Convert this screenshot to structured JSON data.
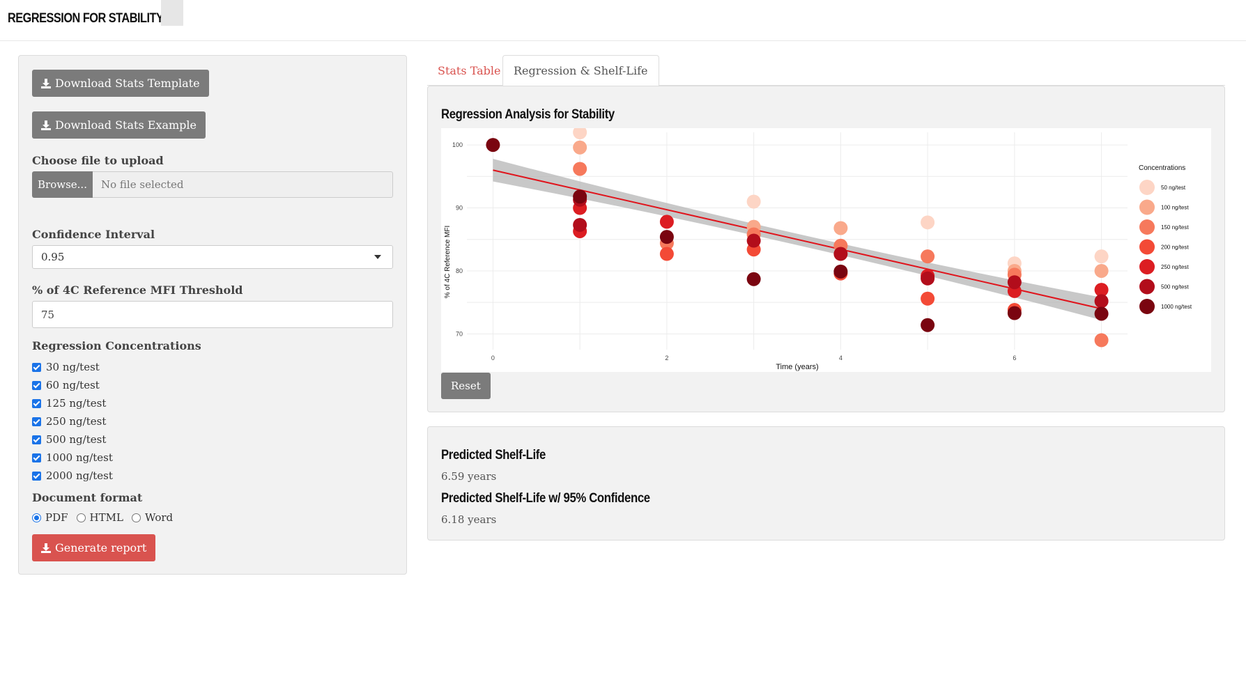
{
  "app": {
    "title": "REGRESSION FOR STABILITY"
  },
  "sidebar": {
    "download_template_label": "Download Stats Template",
    "download_example_label": "Download Stats Example",
    "file_upload": {
      "label": "Choose file to upload",
      "browse_label": "Browse...",
      "value": "No file selected"
    },
    "confidence_interval": {
      "label": "Confidence Interval",
      "value": "0.95"
    },
    "threshold": {
      "label": "% of 4C Reference MFI Threshold",
      "value": "75"
    },
    "regression_concentrations": {
      "label": "Regression Concentrations",
      "items": [
        "30 ng/test",
        "60 ng/test",
        "125 ng/test",
        "250 ng/test",
        "500 ng/test",
        "1000 ng/test",
        "2000 ng/test"
      ]
    },
    "document_format": {
      "label": "Document format",
      "options": [
        "PDF",
        "HTML",
        "Word"
      ],
      "selected": "PDF"
    },
    "generate_label": "Generate report"
  },
  "tabs": [
    {
      "label": "Stats Table",
      "active": false
    },
    {
      "label": "Regression & Shelf-Life",
      "active": true
    }
  ],
  "regression_panel": {
    "title": "Regression Analysis for Stability",
    "reset_label": "Reset"
  },
  "shelf_life": {
    "predicted_label": "Predicted Shelf-Life",
    "predicted_value": "6.59 years",
    "confidence_label": "Predicted Shelf-Life w/ 95% Confidence",
    "confidence_value": "6.18 years"
  },
  "colors": {
    "accent_red": "#d9534f",
    "button_gray": "#7b7b7b",
    "panel_bg": "#f2f2f2"
  },
  "chart_data": {
    "type": "scatter",
    "title": "",
    "xlabel": "Time (years)",
    "ylabel": "% of 4C Reference MFI",
    "xlim": [
      -0.3,
      7.3
    ],
    "ylim": [
      67.5,
      102
    ],
    "x_ticks": [
      0,
      2,
      4,
      6
    ],
    "y_ticks": [
      70,
      80,
      90,
      100
    ],
    "grid": true,
    "legend": {
      "title": "Concentrations",
      "position": "right"
    },
    "regression": {
      "x_start": 0,
      "y_start": 96.0,
      "x_end": 7,
      "y_end": 74.0,
      "ci_halfwidth_start": 1.8,
      "ci_halfwidth_mid": 0.9,
      "ci_halfwidth_end": 1.8
    },
    "series": [
      {
        "name": "50 ng/test",
        "color": "#fdd5c5",
        "points": [
          [
            1,
            102
          ],
          [
            3,
            91
          ],
          [
            5,
            87.7
          ],
          [
            6,
            81.2
          ],
          [
            7,
            82.3
          ]
        ]
      },
      {
        "name": "100 ng/test",
        "color": "#f9a98b",
        "points": [
          [
            1,
            99.6
          ],
          [
            3,
            87
          ],
          [
            4,
            86.8
          ],
          [
            6,
            80
          ],
          [
            7,
            80
          ]
        ]
      },
      {
        "name": "150 ng/test",
        "color": "#f6795c",
        "points": [
          [
            1,
            96.2
          ],
          [
            2,
            84.4
          ],
          [
            3,
            85.8
          ],
          [
            4,
            84
          ],
          [
            5,
            82.3
          ],
          [
            6,
            79.4
          ],
          [
            7,
            69
          ]
        ]
      },
      {
        "name": "200 ng/test",
        "color": "#f34a36",
        "points": [
          [
            2,
            82.7
          ],
          [
            3,
            83.4
          ],
          [
            4,
            79.6
          ],
          [
            5,
            75.6
          ],
          [
            6,
            73.8
          ]
        ]
      },
      {
        "name": "250 ng/test",
        "color": "#dc1d22",
        "points": [
          [
            1,
            86.3
          ],
          [
            1,
            90
          ],
          [
            2,
            87.8
          ],
          [
            5,
            79.2
          ],
          [
            6,
            76.8
          ],
          [
            7,
            77
          ]
        ]
      },
      {
        "name": "500 ng/test",
        "color": "#b20d1b",
        "points": [
          [
            1,
            87.3
          ],
          [
            1,
            91.3
          ],
          [
            3,
            84.8
          ],
          [
            4,
            82.7
          ],
          [
            5,
            78.8
          ],
          [
            6,
            78.2
          ],
          [
            7,
            75.2
          ]
        ]
      },
      {
        "name": "1000 ng/test",
        "color": "#7a0510",
        "points": [
          [
            0,
            100
          ],
          [
            1,
            91.8
          ],
          [
            2,
            85.4
          ],
          [
            3,
            78.7
          ],
          [
            4,
            79.9
          ],
          [
            5,
            71.4
          ],
          [
            6,
            73.3
          ],
          [
            7,
            73.2
          ]
        ]
      }
    ]
  }
}
